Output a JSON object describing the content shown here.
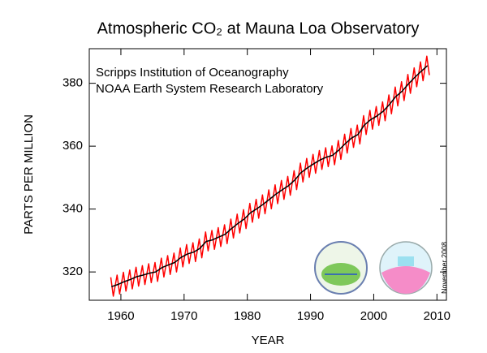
{
  "chart_data": {
    "type": "line",
    "title": "Atmospheric CO₂ at Mauna Loa Observatory",
    "annotations": [
      "Scripps Institution of Oceanography",
      "NOAA Earth System Research Laboratory",
      "November 2008"
    ],
    "x_label": "YEAR",
    "y_label": "PARTS PER MILLION",
    "xlim": [
      1955,
      2011.5
    ],
    "ylim": [
      311,
      391
    ],
    "xticks": [
      1960,
      1970,
      1980,
      1990,
      2000,
      2010
    ],
    "yticks": [
      320,
      340,
      360,
      380
    ],
    "series": [
      {
        "color": "#ff0000",
        "x": [
          1958.4,
          1958.8,
          1959.4,
          1959.8,
          1960.4,
          1960.8,
          1961.4,
          1961.8,
          1962.4,
          1962.8,
          1963.4,
          1963.8,
          1964.4,
          1964.8,
          1965.4,
          1965.8,
          1966.4,
          1966.8,
          1967.4,
          1967.8,
          1968.4,
          1968.8,
          1969.4,
          1969.8,
          1970.4,
          1970.8,
          1971.4,
          1971.8,
          1972.4,
          1972.8,
          1973.4,
          1973.8,
          1974.4,
          1974.8,
          1975.4,
          1975.8,
          1976.4,
          1976.8,
          1977.4,
          1977.8,
          1978.4,
          1978.8,
          1979.4,
          1979.8,
          1980.4,
          1980.8,
          1981.4,
          1981.8,
          1982.4,
          1982.8,
          1983.4,
          1983.8,
          1984.4,
          1984.8,
          1985.4,
          1985.8,
          1986.4,
          1986.8,
          1987.4,
          1987.8,
          1988.4,
          1988.8,
          1989.4,
          1989.8,
          1990.4,
          1990.8,
          1991.4,
          1991.8,
          1992.4,
          1992.8,
          1993.4,
          1993.8,
          1994.4,
          1994.8,
          1995.4,
          1995.8,
          1996.4,
          1996.8,
          1997.4,
          1997.8,
          1998.4,
          1998.8,
          1999.4,
          1999.8,
          2000.4,
          2000.8,
          2001.4,
          2001.8,
          2002.4,
          2002.8,
          2003.4,
          2003.8,
          2004.4,
          2004.8,
          2005.4,
          2005.8,
          2006.4,
          2006.8,
          2007.4,
          2007.8,
          2008.4,
          2008.8
        ],
        "values": [
          318.3,
          312.3,
          319.0,
          313.0,
          319.9,
          313.9,
          320.6,
          314.6,
          321.5,
          315.5,
          322.0,
          316.0,
          322.6,
          316.6,
          323.0,
          317.0,
          324.4,
          318.4,
          325.2,
          319.2,
          326.0,
          320.0,
          327.6,
          321.6,
          328.7,
          322.7,
          329.3,
          323.3,
          330.5,
          324.5,
          332.7,
          326.7,
          333.2,
          327.2,
          334.1,
          328.1,
          335.0,
          329.0,
          336.8,
          330.8,
          338.4,
          332.4,
          339.8,
          333.8,
          341.8,
          335.8,
          343.1,
          337.1,
          344.5,
          338.5,
          346.1,
          340.1,
          347.7,
          341.7,
          349.1,
          343.1,
          350.4,
          344.4,
          352.2,
          346.2,
          354.6,
          348.6,
          356.1,
          350.1,
          357.4,
          351.4,
          358.6,
          352.6,
          359.5,
          353.5,
          360.1,
          354.1,
          361.8,
          355.8,
          363.8,
          357.8,
          365.6,
          359.6,
          366.7,
          360.7,
          369.7,
          363.7,
          371.4,
          365.4,
          372.6,
          366.6,
          374.1,
          368.1,
          376.3,
          370.3,
          378.8,
          372.8,
          380.5,
          374.5,
          382.8,
          376.8,
          384.9,
          378.9,
          386.8,
          380.8,
          388.6,
          382.6
        ]
      },
      {
        "color": "#000000",
        "x": [
          1958.5,
          1959.5,
          1960.5,
          1961.5,
          1962.5,
          1963.5,
          1964.5,
          1965.5,
          1966.5,
          1967.5,
          1968.5,
          1969.5,
          1970.5,
          1971.5,
          1972.5,
          1973.5,
          1974.5,
          1975.5,
          1976.5,
          1977.5,
          1978.5,
          1979.5,
          1980.5,
          1981.5,
          1982.5,
          1983.5,
          1984.5,
          1985.5,
          1986.5,
          1987.5,
          1988.5,
          1989.5,
          1990.5,
          1991.5,
          1992.5,
          1993.5,
          1994.5,
          1995.5,
          1996.5,
          1997.5,
          1998.5,
          1999.5,
          2000.5,
          2001.5,
          2002.5,
          2003.5,
          2004.5,
          2005.5,
          2006.5,
          2007.5,
          2008.5
        ],
        "values": [
          315.3,
          316.0,
          316.9,
          317.6,
          318.5,
          319.0,
          319.6,
          320.0,
          321.4,
          322.2,
          323.0,
          324.6,
          325.7,
          326.3,
          327.5,
          329.7,
          330.2,
          331.1,
          332.0,
          333.8,
          335.4,
          336.8,
          338.8,
          340.1,
          341.5,
          343.1,
          344.7,
          346.1,
          347.4,
          349.2,
          351.6,
          353.1,
          354.4,
          355.6,
          356.5,
          357.1,
          358.8,
          360.8,
          362.6,
          363.7,
          366.7,
          368.4,
          369.6,
          371.1,
          373.3,
          375.8,
          377.5,
          379.8,
          381.9,
          383.8,
          385.6
        ]
      }
    ]
  }
}
